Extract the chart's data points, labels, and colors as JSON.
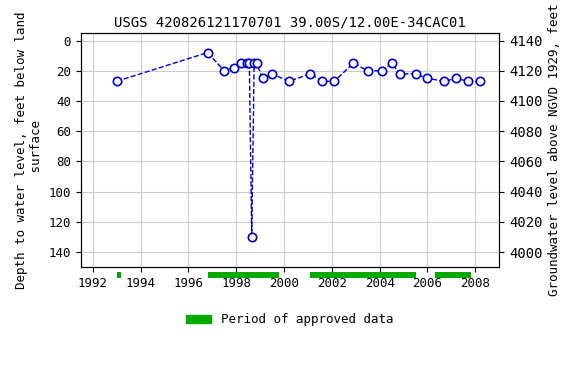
{
  "title": "USGS 420826121170701 39.00S/12.00E-34CAC01",
  "xlabel": "",
  "ylabel_left": "Depth to water level, feet below land\n surface",
  "ylabel_right": "Groundwater level above NGVD 1929, feet",
  "xlim": [
    1991.5,
    2009.0
  ],
  "ylim_left": [
    150,
    -5
  ],
  "ylim_right": [
    3990,
    4145
  ],
  "xticks": [
    1992,
    1994,
    1996,
    1998,
    2000,
    2002,
    2004,
    2006,
    2008
  ],
  "yticks_left": [
    0,
    20,
    40,
    60,
    80,
    100,
    120,
    140
  ],
  "yticks_right": [
    4000,
    4020,
    4040,
    4060,
    4080,
    4100,
    4120,
    4140
  ],
  "data_x": [
    1993.0,
    1996.8,
    1997.5,
    1997.9,
    1998.2,
    1998.45,
    1998.55,
    1998.65,
    1998.75,
    1998.85,
    1999.1,
    1999.5,
    2000.2,
    2001.1,
    2001.6,
    2002.1,
    2002.9,
    2003.5,
    2004.1,
    2004.5,
    2004.85,
    2005.5,
    2006.0,
    2006.7,
    2007.2,
    2007.7,
    2008.2
  ],
  "data_y": [
    27,
    8,
    20,
    18,
    15,
    15,
    15,
    130,
    15,
    15,
    25,
    22,
    27,
    22,
    27,
    27,
    15,
    20,
    20,
    15,
    22,
    22,
    25,
    27,
    25,
    27,
    27
  ],
  "approved_periods": [
    [
      1993.0,
      1993.2
    ],
    [
      1996.8,
      1999.8
    ],
    [
      2001.1,
      2005.5
    ],
    [
      2006.3,
      2007.8
    ]
  ],
  "data_color": "#0000cc",
  "approved_color": "#00aa00",
  "background_color": "#ffffff",
  "grid_color": "#cccccc",
  "title_fontsize": 10,
  "label_fontsize": 9,
  "tick_fontsize": 9
}
